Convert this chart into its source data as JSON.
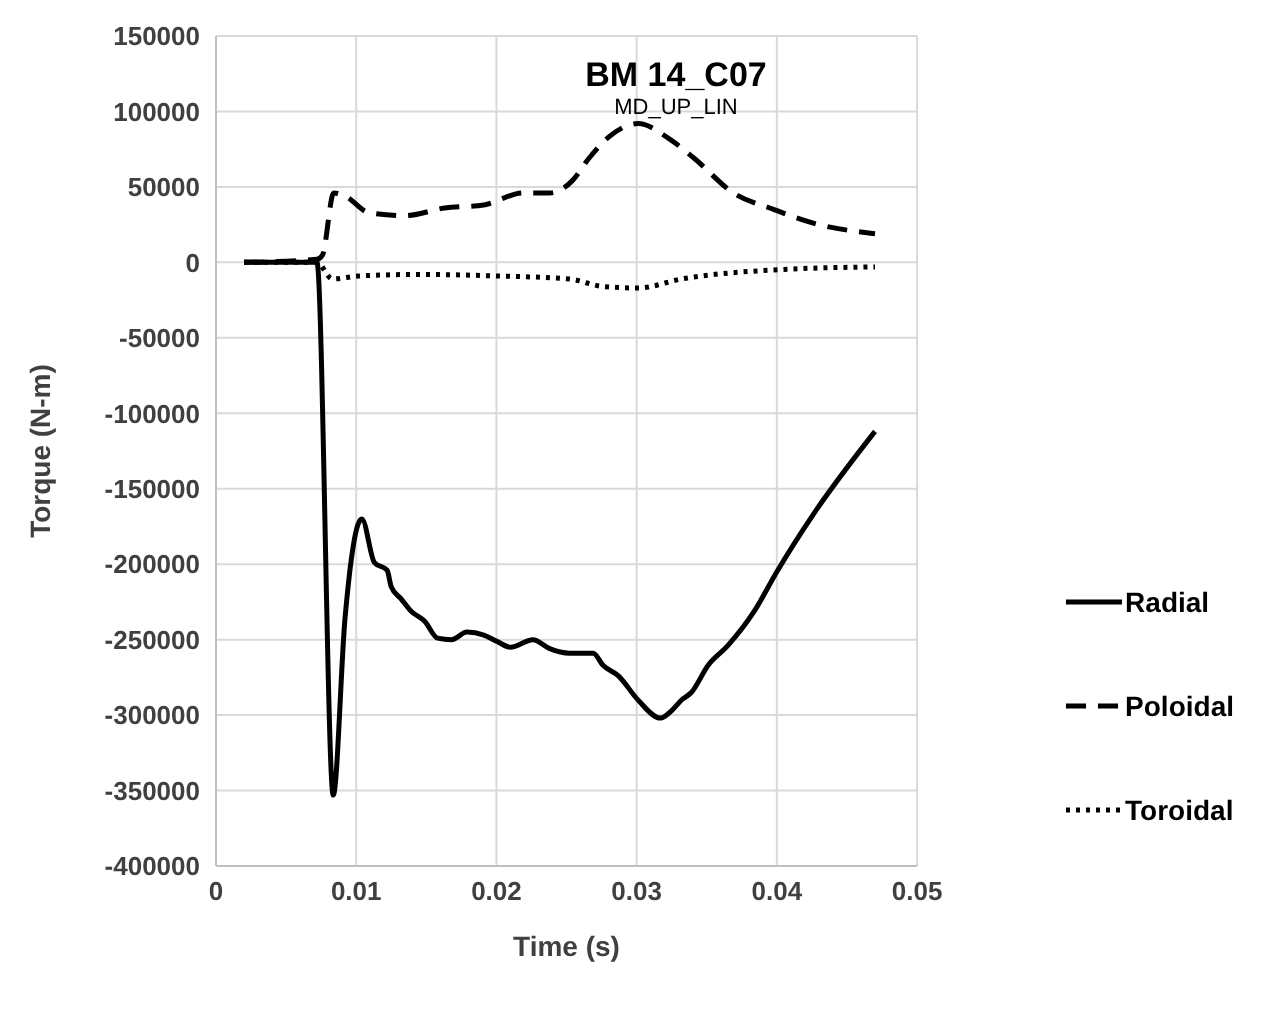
{
  "chart_data": {
    "type": "line",
    "title": "BM 14_C07",
    "subtitle": "MD_UP_LIN",
    "xlabel": "Time (s)",
    "ylabel": "Torque (N-m)",
    "xlim": [
      0,
      0.05
    ],
    "xticks": [
      0,
      0.01,
      0.02,
      0.03,
      0.04,
      0.05
    ],
    "ylim": [
      -400000,
      150000
    ],
    "yticks": [
      -400000,
      -350000,
      -300000,
      -250000,
      -200000,
      -150000,
      -100000,
      -50000,
      0,
      50000,
      100000,
      150000
    ],
    "grid": true,
    "legend": "right",
    "marker": "none",
    "series": [
      {
        "name": "Radial",
        "color": "#000000",
        "line_style": "solid",
        "x": [
          0.002,
          0.0069,
          0.0072,
          0.00836,
          0.0092,
          0.0104,
          0.0113,
          0.0122,
          0.0125,
          0.0132,
          0.0139,
          0.0149,
          0.0158,
          0.0168,
          0.0179,
          0.0191,
          0.02,
          0.021,
          0.0226,
          0.0238,
          0.0252,
          0.0269,
          0.0276,
          0.0287,
          0.0301,
          0.0317,
          0.0325,
          0.0332,
          0.0339,
          0.0351,
          0.0365,
          0.0384,
          0.04,
          0.0426,
          0.047
        ],
        "values": [
          0,
          0,
          0,
          -353000,
          -236000,
          -170000,
          -199000,
          -204000,
          -215000,
          -223000,
          -231000,
          -238000,
          -249000,
          -250000,
          -245000,
          -247000,
          -251000,
          -255000,
          -250000,
          -256000,
          -259000,
          -259000,
          -267000,
          -274000,
          -290000,
          -302000,
          -297000,
          -290000,
          -285000,
          -267000,
          -254000,
          -231000,
          -205000,
          -167000,
          -112000
        ]
      },
      {
        "name": "Poloidal",
        "color": "#000000",
        "line_style": "dashed",
        "x": [
          0.002,
          0.0072,
          0.0076,
          0.0084,
          0.0092,
          0.0109,
          0.0135,
          0.0163,
          0.0191,
          0.0219,
          0.0238,
          0.0254,
          0.0266,
          0.028,
          0.0301,
          0.0323,
          0.0341,
          0.0369,
          0.0398,
          0.0426,
          0.047
        ],
        "values": [
          0,
          2000,
          5000,
          46000,
          44000,
          33000,
          31000,
          36000,
          38000,
          46000,
          46000,
          54000,
          69000,
          83000,
          92000,
          82000,
          69000,
          46000,
          35000,
          26000,
          19000
        ]
      },
      {
        "name": "Toroidal",
        "color": "#000000",
        "line_style": "dotted",
        "x": [
          0.002,
          0.0072,
          0.0083,
          0.0102,
          0.0144,
          0.02,
          0.0252,
          0.0276,
          0.0301,
          0.0332,
          0.0398,
          0.047
        ],
        "values": [
          0,
          0,
          -11000,
          -9000,
          -8000,
          -9000,
          -11000,
          -16000,
          -17000,
          -11000,
          -5000,
          -3000
        ]
      }
    ]
  }
}
